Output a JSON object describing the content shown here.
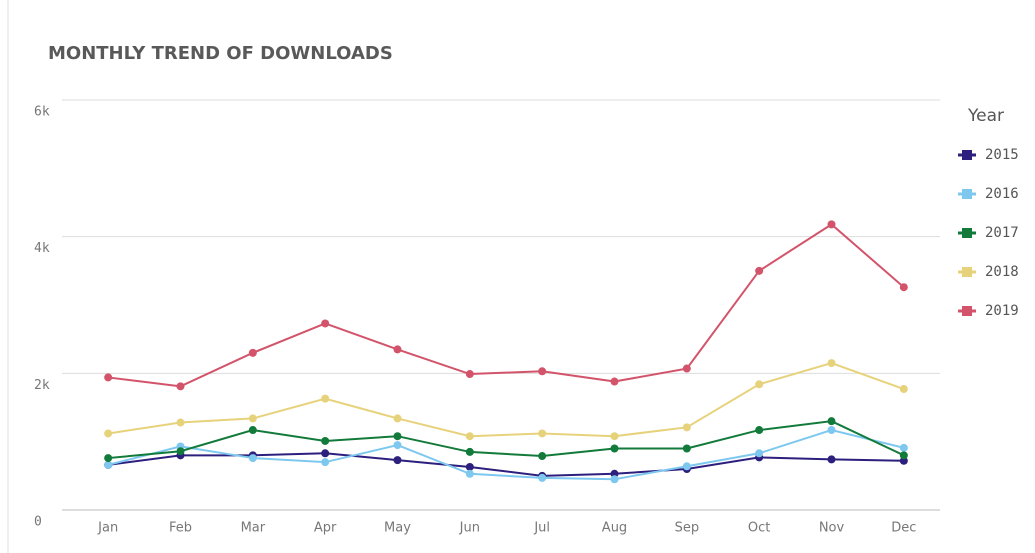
{
  "chart_data": {
    "type": "line",
    "title": "MONTHLY TREND OF DOWNLOADS",
    "categories": [
      "Jan",
      "Feb",
      "Mar",
      "Apr",
      "May",
      "Jun",
      "Jul",
      "Aug",
      "Sep",
      "Oct",
      "Nov",
      "Dec"
    ],
    "legend_title": "Year",
    "series": [
      {
        "name": "2015",
        "color": "#2c1f7e",
        "values": [
          660,
          800,
          800,
          830,
          730,
          630,
          500,
          530,
          600,
          770,
          740,
          720
        ]
      },
      {
        "name": "2016",
        "color": "#7ec8ef",
        "values": [
          660,
          930,
          760,
          700,
          950,
          530,
          470,
          450,
          640,
          830,
          1170,
          910
        ]
      },
      {
        "name": "2017",
        "color": "#127a3a",
        "values": [
          760,
          860,
          1170,
          1010,
          1080,
          850,
          790,
          900,
          900,
          1170,
          1300,
          800
        ]
      },
      {
        "name": "2018",
        "color": "#e7d27c",
        "values": [
          1120,
          1280,
          1340,
          1630,
          1340,
          1080,
          1120,
          1080,
          1210,
          1840,
          2150,
          1770
        ]
      },
      {
        "name": "2019",
        "color": "#d3546a",
        "values": [
          1940,
          1810,
          2300,
          2730,
          2350,
          1990,
          2030,
          1880,
          2070,
          3500,
          4180,
          3260
        ]
      }
    ],
    "ylim": [
      0,
      6000
    ],
    "yticks": [
      0,
      {
        "value": 2000,
        "label": "2k"
      },
      {
        "value": 4000,
        "label": "4k"
      },
      {
        "value": 6000,
        "label": "6k"
      }
    ],
    "grid": true,
    "legend": "right"
  }
}
